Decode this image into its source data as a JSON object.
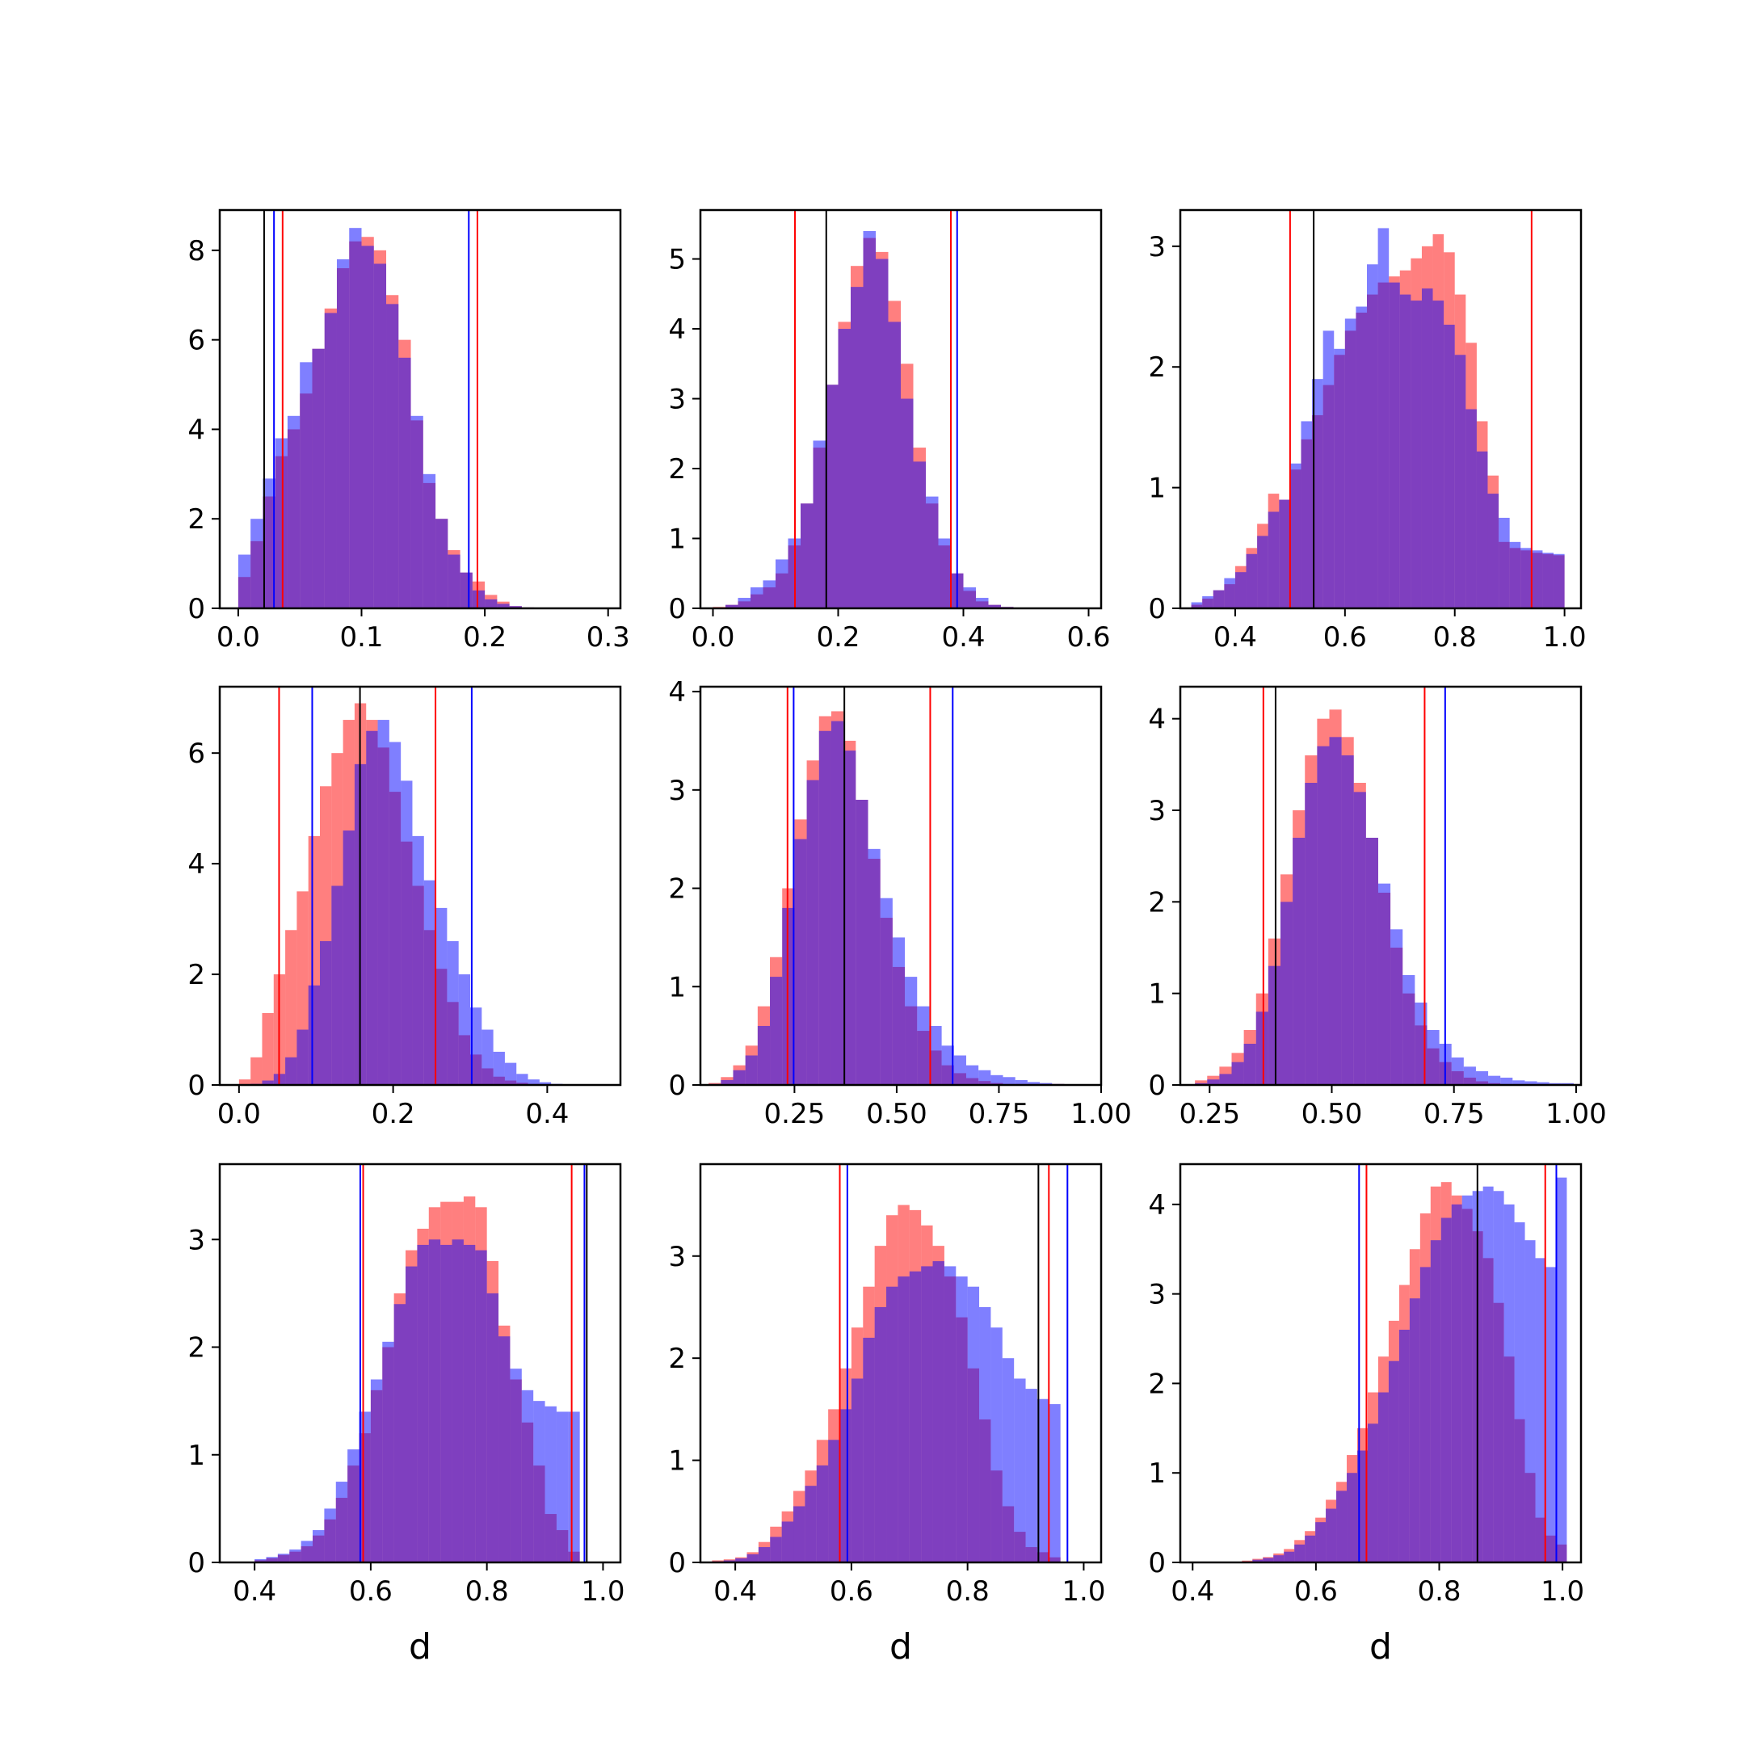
{
  "colors": {
    "red_series": "#ff0000",
    "blue_series": "#0000ff",
    "overlap": "#7f3fbf",
    "reference_line": "#000000"
  },
  "chart_data": [
    {
      "type": "histogram",
      "panel": "row1-col1",
      "xlabel": "",
      "xlim": [
        -0.015,
        0.31
      ],
      "ylim": [
        0,
        8.9
      ],
      "xticks": [
        "0.0",
        "0.1",
        "0.2",
        "0.3"
      ],
      "xtick_values": [
        0,
        0.1,
        0.2,
        0.3
      ],
      "yticks": [
        "0",
        "2",
        "4",
        "6",
        "8"
      ],
      "ytick_values": [
        0,
        2,
        4,
        6,
        8
      ],
      "x_start": 0.0,
      "bin_width": 0.01,
      "series": [
        {
          "color": "red",
          "values": [
            0.7,
            1.5,
            2.5,
            3.4,
            4.0,
            4.8,
            5.8,
            6.7,
            7.6,
            8.2,
            8.3,
            8.0,
            7.0,
            6.0,
            4.2,
            2.8,
            2.0,
            1.3,
            0.8,
            0.6,
            0.3,
            0.15,
            0.05,
            0.02
          ]
        },
        {
          "color": "blue",
          "values": [
            1.2,
            2.0,
            2.9,
            3.8,
            4.3,
            5.5,
            5.8,
            6.6,
            7.8,
            8.5,
            8.1,
            7.7,
            6.8,
            5.6,
            4.3,
            3.0,
            2.0,
            1.2,
            0.8,
            0.4,
            0.2,
            0.1,
            0.05,
            0.02
          ]
        }
      ],
      "vlines": [
        {
          "color": "black",
          "x": 0.021
        },
        {
          "color": "blue",
          "x": 0.029
        },
        {
          "color": "red",
          "x": 0.036
        },
        {
          "color": "blue",
          "x": 0.187
        },
        {
          "color": "red",
          "x": 0.194
        }
      ]
    },
    {
      "type": "histogram",
      "panel": "row1-col2",
      "xlabel": "",
      "xlim": [
        -0.02,
        0.62
      ],
      "ylim": [
        0,
        5.7
      ],
      "xticks": [
        "0.0",
        "0.2",
        "0.4",
        "0.6"
      ],
      "xtick_values": [
        0,
        0.2,
        0.4,
        0.6
      ],
      "yticks": [
        "0",
        "1",
        "2",
        "3",
        "4",
        "5"
      ],
      "ytick_values": [
        0,
        1,
        2,
        3,
        4,
        5
      ],
      "x_start": 0.0,
      "bin_width": 0.02,
      "series": [
        {
          "color": "red",
          "values": [
            0.02,
            0.05,
            0.1,
            0.2,
            0.3,
            0.5,
            0.9,
            1.5,
            2.3,
            3.2,
            4.1,
            4.9,
            5.3,
            5.1,
            4.4,
            3.5,
            2.3,
            1.5,
            0.9,
            0.5,
            0.25,
            0.1,
            0.05,
            0.02,
            0.01
          ]
        },
        {
          "color": "blue",
          "values": [
            0.01,
            0.05,
            0.15,
            0.3,
            0.4,
            0.7,
            1.0,
            1.5,
            2.4,
            3.2,
            4.0,
            4.6,
            5.4,
            5.0,
            4.1,
            3.0,
            2.1,
            1.6,
            1.0,
            0.5,
            0.3,
            0.15,
            0.05,
            0.02,
            0.01
          ]
        }
      ],
      "vlines": [
        {
          "color": "red",
          "x": 0.131
        },
        {
          "color": "black",
          "x": 0.181
        },
        {
          "color": "red",
          "x": 0.38
        },
        {
          "color": "blue",
          "x": 0.39
        }
      ]
    },
    {
      "type": "histogram",
      "panel": "row1-col3",
      "xlabel": "",
      "xlim": [
        0.3,
        1.03
      ],
      "ylim": [
        0,
        3.3
      ],
      "xticks": [
        "0.4",
        "0.6",
        "0.8",
        "1.0"
      ],
      "xtick_values": [
        0.4,
        0.6,
        0.8,
        1.0
      ],
      "yticks": [
        "0",
        "1",
        "2",
        "3"
      ],
      "ytick_values": [
        0,
        1,
        2,
        3
      ],
      "x_start": 0.32,
      "bin_width": 0.02,
      "series": [
        {
          "color": "red",
          "values": [
            0.03,
            0.08,
            0.15,
            0.2,
            0.35,
            0.5,
            0.7,
            0.95,
            0.9,
            1.15,
            1.4,
            1.6,
            1.85,
            2.1,
            2.3,
            2.45,
            2.6,
            2.7,
            2.75,
            2.8,
            2.9,
            3.0,
            3.1,
            2.95,
            2.6,
            2.2,
            1.55,
            1.1,
            0.55,
            0.5,
            0.48,
            0.46,
            0.45,
            0.44
          ]
        },
        {
          "color": "blue",
          "values": [
            0.05,
            0.1,
            0.15,
            0.25,
            0.3,
            0.45,
            0.6,
            0.8,
            0.9,
            1.2,
            1.55,
            1.9,
            2.3,
            2.15,
            2.4,
            2.5,
            2.85,
            3.15,
            2.7,
            2.6,
            2.55,
            2.65,
            2.55,
            2.35,
            2.1,
            1.65,
            1.3,
            0.95,
            0.75,
            0.55,
            0.5,
            0.48,
            0.46,
            0.45
          ]
        }
      ],
      "vlines": [
        {
          "color": "red",
          "x": 0.5
        },
        {
          "color": "black",
          "x": 0.543
        },
        {
          "color": "red",
          "x": 0.94
        }
      ]
    },
    {
      "type": "histogram",
      "panel": "row2-col1",
      "xlabel": "",
      "xlim": [
        -0.025,
        0.495
      ],
      "ylim": [
        0,
        7.2
      ],
      "xticks": [
        "0.0",
        "0.2",
        "0.4"
      ],
      "xtick_values": [
        0,
        0.2,
        0.4
      ],
      "yticks": [
        "0",
        "2",
        "4",
        "6"
      ],
      "ytick_values": [
        0,
        2,
        4,
        6
      ],
      "x_start": 0.0,
      "bin_width": 0.015,
      "series": [
        {
          "color": "red",
          "values": [
            0.1,
            0.5,
            1.3,
            2.0,
            2.8,
            3.5,
            4.5,
            5.4,
            6.0,
            6.6,
            6.9,
            6.6,
            6.1,
            5.3,
            4.4,
            3.6,
            2.8,
            2.1,
            1.5,
            0.9,
            0.55,
            0.3,
            0.15,
            0.08,
            0.04,
            0.02,
            0.01,
            0.01
          ]
        },
        {
          "color": "blue",
          "values": [
            0.01,
            0.02,
            0.08,
            0.2,
            0.5,
            1.0,
            1.8,
            2.6,
            3.6,
            4.6,
            5.8,
            6.4,
            6.6,
            6.2,
            5.5,
            4.5,
            3.7,
            3.2,
            2.6,
            2.0,
            1.4,
            1.0,
            0.6,
            0.4,
            0.2,
            0.1,
            0.05,
            0.02
          ]
        }
      ],
      "vlines": [
        {
          "color": "red",
          "x": 0.052
        },
        {
          "color": "blue",
          "x": 0.095
        },
        {
          "color": "black",
          "x": 0.157
        },
        {
          "color": "red",
          "x": 0.255
        },
        {
          "color": "blue",
          "x": 0.302
        }
      ]
    },
    {
      "type": "histogram",
      "panel": "row2-col2",
      "xlabel": "",
      "xlim": [
        0.02,
        1.0
      ],
      "ylim": [
        0,
        4.05
      ],
      "xticks": [
        "0.25",
        "0.50",
        "0.75",
        "1.00"
      ],
      "xtick_values": [
        0.25,
        0.5,
        0.75,
        1.0
      ],
      "yticks": [
        "0",
        "1",
        "2",
        "3",
        "4"
      ],
      "ytick_values": [
        0,
        1,
        2,
        3,
        4
      ],
      "x_start": 0.04,
      "bin_width": 0.03,
      "series": [
        {
          "color": "red",
          "values": [
            0.02,
            0.08,
            0.2,
            0.4,
            0.8,
            1.3,
            2.0,
            2.7,
            3.3,
            3.75,
            3.8,
            3.5,
            2.9,
            2.3,
            1.7,
            1.2,
            0.8,
            0.55,
            0.35,
            0.2,
            0.12,
            0.07,
            0.04,
            0.02,
            0.01,
            0.01,
            0.01,
            0.01,
            0.01
          ]
        },
        {
          "color": "blue",
          "values": [
            0.01,
            0.05,
            0.15,
            0.3,
            0.6,
            1.1,
            1.8,
            2.5,
            3.1,
            3.6,
            3.7,
            3.4,
            2.9,
            2.4,
            1.9,
            1.5,
            1.1,
            0.8,
            0.6,
            0.4,
            0.3,
            0.2,
            0.15,
            0.1,
            0.08,
            0.05,
            0.03,
            0.02,
            0.01
          ]
        }
      ],
      "vlines": [
        {
          "color": "red",
          "x": 0.233
        },
        {
          "color": "blue",
          "x": 0.248
        },
        {
          "color": "black",
          "x": 0.372
        },
        {
          "color": "red",
          "x": 0.582
        },
        {
          "color": "blue",
          "x": 0.637
        }
      ]
    },
    {
      "type": "histogram",
      "panel": "row2-col3",
      "xlabel": "",
      "xlim": [
        0.19,
        1.01
      ],
      "ylim": [
        0,
        4.35
      ],
      "xticks": [
        "0.25",
        "0.50",
        "0.75",
        "1.00"
      ],
      "xtick_values": [
        0.25,
        0.5,
        0.75,
        1.0
      ],
      "yticks": [
        "0",
        "1",
        "2",
        "3",
        "4"
      ],
      "ytick_values": [
        0,
        1,
        2,
        3,
        4
      ],
      "x_start": 0.22,
      "bin_width": 0.025,
      "series": [
        {
          "color": "red",
          "values": [
            0.05,
            0.1,
            0.2,
            0.35,
            0.6,
            1.0,
            1.6,
            2.3,
            3.0,
            3.6,
            4.0,
            4.1,
            3.8,
            3.3,
            2.7,
            2.1,
            1.5,
            1.0,
            0.65,
            0.4,
            0.25,
            0.15,
            0.08,
            0.04,
            0.02,
            0.01,
            0.01,
            0.01,
            0.01,
            0.01,
            0.01,
            0.01
          ]
        },
        {
          "color": "blue",
          "values": [
            0.02,
            0.06,
            0.12,
            0.25,
            0.45,
            0.8,
            1.3,
            2.0,
            2.7,
            3.3,
            3.7,
            3.8,
            3.6,
            3.2,
            2.7,
            2.2,
            1.7,
            1.2,
            0.9,
            0.6,
            0.45,
            0.3,
            0.2,
            0.15,
            0.1,
            0.08,
            0.05,
            0.04,
            0.03,
            0.02,
            0.02,
            0.01
          ]
        }
      ],
      "vlines": [
        {
          "color": "red",
          "x": 0.36
        },
        {
          "color": "black",
          "x": 0.385
        },
        {
          "color": "red",
          "x": 0.69
        },
        {
          "color": "blue",
          "x": 0.732
        }
      ]
    },
    {
      "type": "histogram",
      "panel": "row3-col1",
      "xlabel": "d",
      "xlim": [
        0.34,
        1.03
      ],
      "ylim": [
        0,
        3.7
      ],
      "xticks": [
        "0.4",
        "0.6",
        "0.8",
        "1.0"
      ],
      "xtick_values": [
        0.4,
        0.6,
        0.8,
        1.0
      ],
      "yticks": [
        "0",
        "1",
        "2",
        "3"
      ],
      "ytick_values": [
        0,
        1,
        2,
        3
      ],
      "x_start": 0.4,
      "bin_width": 0.02,
      "series": [
        {
          "color": "red",
          "values": [
            0.02,
            0.04,
            0.07,
            0.1,
            0.15,
            0.25,
            0.4,
            0.6,
            0.9,
            1.2,
            1.6,
            2.0,
            2.5,
            2.9,
            3.1,
            3.3,
            3.35,
            3.35,
            3.4,
            3.3,
            2.8,
            2.2,
            1.7,
            1.3,
            0.9,
            0.45,
            0.3,
            0.1
          ]
        },
        {
          "color": "blue",
          "values": [
            0.03,
            0.05,
            0.08,
            0.12,
            0.2,
            0.3,
            0.5,
            0.75,
            1.05,
            1.4,
            1.7,
            2.05,
            2.4,
            2.75,
            2.95,
            3.0,
            2.95,
            3.0,
            2.95,
            2.9,
            2.5,
            2.1,
            1.8,
            1.6,
            1.5,
            1.45,
            1.4,
            1.4
          ]
        }
      ],
      "vlines": [
        {
          "color": "blue",
          "x": 0.582
        },
        {
          "color": "red",
          "x": 0.587
        },
        {
          "color": "red",
          "x": 0.946
        },
        {
          "color": "blue",
          "x": 0.968
        },
        {
          "color": "black",
          "x": 0.972
        }
      ]
    },
    {
      "type": "histogram",
      "panel": "row3-col2",
      "xlabel": "d",
      "xlim": [
        0.34,
        1.03
      ],
      "ylim": [
        0,
        3.9
      ],
      "xticks": [
        "0.4",
        "0.6",
        "0.8",
        "1.0"
      ],
      "xtick_values": [
        0.4,
        0.6,
        0.8,
        1.0
      ],
      "yticks": [
        "0",
        "1",
        "2",
        "3"
      ],
      "ytick_values": [
        0,
        1,
        2,
        3
      ],
      "x_start": 0.36,
      "bin_width": 0.02,
      "series": [
        {
          "color": "red",
          "values": [
            0.02,
            0.03,
            0.05,
            0.1,
            0.2,
            0.35,
            0.5,
            0.7,
            0.9,
            1.2,
            1.5,
            1.9,
            2.3,
            2.7,
            3.1,
            3.4,
            3.5,
            3.45,
            3.3,
            3.1,
            2.8,
            2.4,
            1.9,
            1.4,
            0.9,
            0.55,
            0.3,
            0.15,
            0.1,
            0.05
          ]
        },
        {
          "color": "blue",
          "values": [
            0.01,
            0.02,
            0.04,
            0.08,
            0.15,
            0.25,
            0.4,
            0.55,
            0.75,
            0.95,
            1.2,
            1.5,
            1.8,
            2.2,
            2.5,
            2.7,
            2.8,
            2.85,
            2.9,
            2.95,
            2.9,
            2.8,
            2.7,
            2.5,
            2.3,
            2.0,
            1.8,
            1.7,
            1.6,
            1.55
          ]
        }
      ],
      "vlines": [
        {
          "color": "red",
          "x": 0.58
        },
        {
          "color": "blue",
          "x": 0.593
        },
        {
          "color": "black",
          "x": 0.922
        },
        {
          "color": "red",
          "x": 0.94
        },
        {
          "color": "blue",
          "x": 0.972
        }
      ]
    },
    {
      "type": "histogram",
      "panel": "row3-col3",
      "xlabel": "d",
      "xlim": [
        0.38,
        1.03
      ],
      "ylim": [
        0,
        4.45
      ],
      "xticks": [
        "0.4",
        "0.6",
        "0.8",
        "1.0"
      ],
      "xtick_values": [
        0.4,
        0.6,
        0.8,
        1.0
      ],
      "yticks": [
        "0",
        "1",
        "2",
        "3",
        "4"
      ],
      "ytick_values": [
        0,
        1,
        2,
        3,
        4
      ],
      "x_start": 0.48,
      "bin_width": 0.017,
      "series": [
        {
          "color": "red",
          "values": [
            0.02,
            0.04,
            0.06,
            0.1,
            0.15,
            0.25,
            0.35,
            0.5,
            0.7,
            0.9,
            1.2,
            1.5,
            1.9,
            2.3,
            2.7,
            3.1,
            3.5,
            3.9,
            4.2,
            4.25,
            4.1,
            3.95,
            3.7,
            3.4,
            2.9,
            2.3,
            1.6,
            1.0,
            0.5,
            0.3,
            0.2
          ]
        },
        {
          "color": "blue",
          "values": [
            0.01,
            0.03,
            0.05,
            0.08,
            0.12,
            0.2,
            0.3,
            0.45,
            0.6,
            0.8,
            1.0,
            1.25,
            1.55,
            1.9,
            2.25,
            2.6,
            2.95,
            3.3,
            3.6,
            3.85,
            4.0,
            4.1,
            4.15,
            4.2,
            4.15,
            4.0,
            3.8,
            3.6,
            3.4,
            3.3,
            4.3
          ]
        }
      ],
      "vlines": [
        {
          "color": "blue",
          "x": 0.67
        },
        {
          "color": "red",
          "x": 0.682
        },
        {
          "color": "black",
          "x": 0.862
        },
        {
          "color": "red",
          "x": 0.972
        },
        {
          "color": "blue",
          "x": 0.99
        }
      ]
    }
  ]
}
